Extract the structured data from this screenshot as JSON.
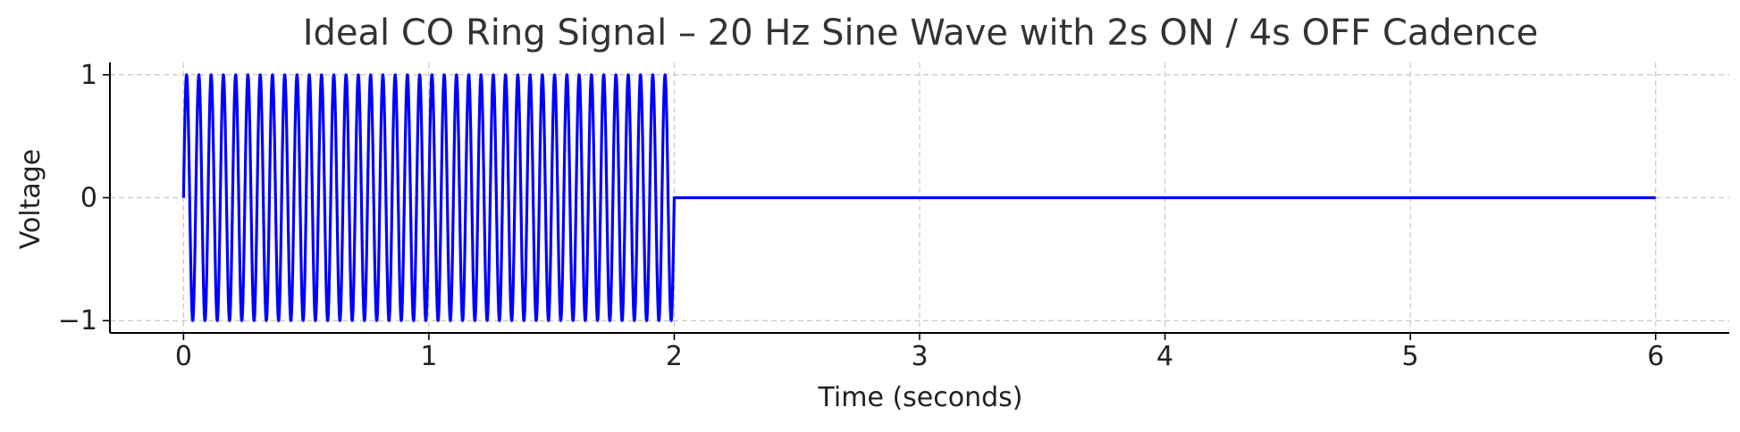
{
  "chart_data": {
    "type": "line",
    "title": "Ideal CO Ring Signal – 20 Hz Sine Wave with 2s ON / 4s OFF Cadence",
    "xlabel": "Time (seconds)",
    "ylabel": "Voltage",
    "xlim": [
      -0.3,
      6.3
    ],
    "ylim": [
      -1.1,
      1.1
    ],
    "x_ticks": [
      0,
      1,
      2,
      3,
      4,
      5,
      6
    ],
    "x_tick_labels": [
      "0",
      "1",
      "2",
      "3",
      "4",
      "5",
      "6"
    ],
    "y_ticks": [
      -1,
      0,
      1
    ],
    "y_tick_labels": [
      "−1",
      "0",
      "1"
    ],
    "grid": true,
    "series": [
      {
        "color": "#0000ff",
        "on_duration_s": 2,
        "off_duration_s": 4,
        "frequency_hz": 20,
        "amplitude": 1,
        "x_start": 0,
        "x_end": 6
      }
    ],
    "colors": {
      "line": "#0000ff",
      "grid": "#c8c8c8",
      "axis": "#000000",
      "text": "#333333"
    }
  }
}
